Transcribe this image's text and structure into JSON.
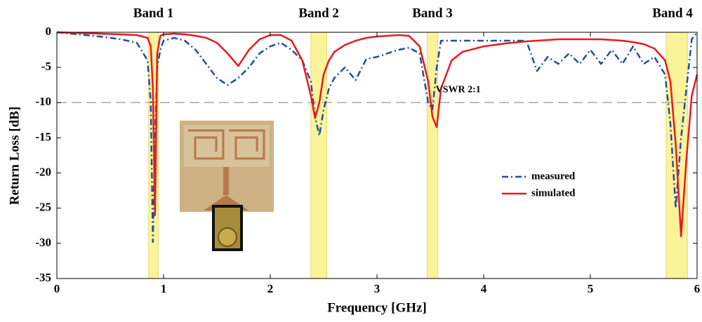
{
  "chart_data": {
    "type": "line",
    "xlabel": "Frequency [GHz]",
    "ylabel": "Return Loss [dB]",
    "xlim": [
      0,
      6
    ],
    "ylim": [
      -35,
      0
    ],
    "xticks": [
      0,
      1,
      2,
      3,
      4,
      5,
      6
    ],
    "yticks": [
      -35,
      -30,
      -25,
      -20,
      -15,
      -10,
      -5,
      0
    ],
    "grid": false,
    "legend": "center right",
    "bands": [
      {
        "label": "Band 1",
        "range": [
          0.86,
          0.95
        ]
      },
      {
        "label": "Band 2",
        "range": [
          2.38,
          2.53
        ]
      },
      {
        "label": "Band 3",
        "range": [
          3.47,
          3.57
        ]
      },
      {
        "label": "Band 4",
        "range": [
          5.71,
          5.91
        ]
      }
    ],
    "band_color": "#fbf39a",
    "reference_line": {
      "value": -10,
      "label": "VSWR 2:1"
    },
    "x": [
      0,
      0.2,
      0.4,
      0.6,
      0.75,
      0.85,
      0.88,
      0.9,
      0.92,
      0.94,
      0.97,
      1.0,
      1.1,
      1.2,
      1.3,
      1.4,
      1.5,
      1.6,
      1.7,
      1.8,
      1.9,
      2.0,
      2.1,
      2.2,
      2.3,
      2.38,
      2.42,
      2.46,
      2.5,
      2.55,
      2.6,
      2.7,
      2.8,
      2.9,
      3.0,
      3.1,
      3.2,
      3.3,
      3.4,
      3.48,
      3.52,
      3.56,
      3.6,
      3.7,
      3.8,
      4.0,
      4.2,
      4.4,
      4.5,
      4.6,
      4.7,
      4.8,
      4.9,
      5.0,
      5.1,
      5.2,
      5.3,
      5.4,
      5.5,
      5.6,
      5.7,
      5.75,
      5.8,
      5.85,
      5.9,
      5.95,
      6.0
    ],
    "series": [
      {
        "name": "measured",
        "color": "#1f4fa0",
        "dash": "dash-dot",
        "values": [
          0,
          -0.3,
          -0.6,
          -1,
          -1.5,
          -4,
          -10,
          -29.8,
          -15,
          -5,
          -2.5,
          -1.2,
          -0.8,
          -1.2,
          -2.5,
          -4.5,
          -6.5,
          -7.5,
          -6.5,
          -5,
          -3,
          -2,
          -1.5,
          -2.5,
          -4,
          -7,
          -12,
          -14.7,
          -11,
          -8,
          -6.5,
          -5,
          -6.8,
          -3.8,
          -3.5,
          -3,
          -2.5,
          -2.2,
          -3,
          -10,
          -11,
          -5,
          -1.2,
          -1.2,
          -1.2,
          -1.2,
          -1.2,
          -1.2,
          -5.5,
          -3.5,
          -4.5,
          -3,
          -4.5,
          -2.5,
          -4.5,
          -2.5,
          -4.5,
          -2,
          -4.5,
          -3.5,
          -6,
          -13,
          -25,
          -15,
          -8,
          -1,
          0
        ]
      },
      {
        "name": "simulated",
        "color": "#e8191e",
        "dash": "solid",
        "values": [
          0,
          -0.1,
          -0.2,
          -0.3,
          -0.4,
          -0.8,
          -2,
          -8,
          -26,
          -3,
          -0.5,
          -0.3,
          -0.2,
          -0.3,
          -0.5,
          -0.8,
          -1.5,
          -3,
          -4.8,
          -2.5,
          -1,
          -0.4,
          -0.4,
          -1.2,
          -4,
          -9,
          -12.2,
          -10,
          -6,
          -4,
          -2.8,
          -1.8,
          -1.2,
          -0.8,
          -0.6,
          -0.5,
          -0.4,
          -0.5,
          -2,
          -7,
          -12,
          -13.5,
          -8,
          -4,
          -2.8,
          -2,
          -1.6,
          -1.3,
          -1.2,
          -1.1,
          -1,
          -1,
          -1,
          -1,
          -1,
          -1.1,
          -1.2,
          -1.4,
          -1.7,
          -2.3,
          -4,
          -7,
          -16,
          -29,
          -18,
          -9,
          -6
        ]
      }
    ]
  }
}
